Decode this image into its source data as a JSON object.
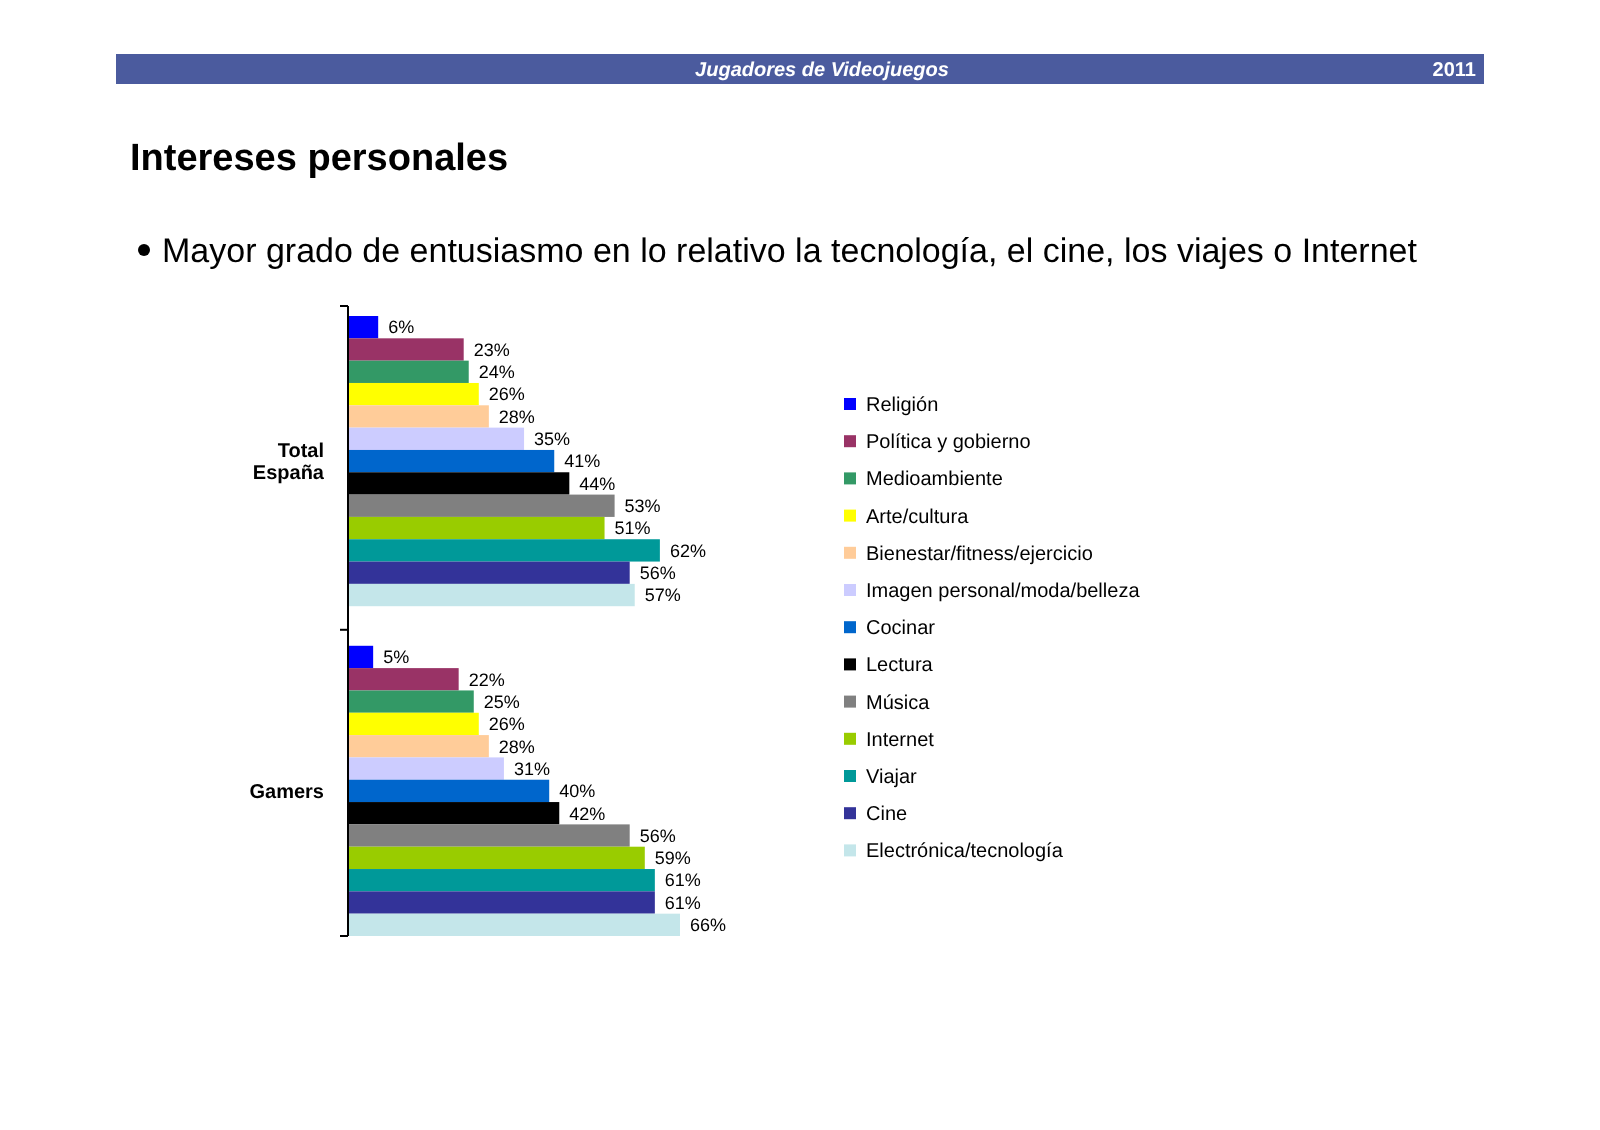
{
  "chart_data": {
    "type": "bar",
    "orientation": "horizontal",
    "title": "Intereses personales",
    "subtitle": "Mayor grado de entusiasmo en lo relativo la tecnología, el cine, los viajes o Internet",
    "annotations": [
      "Jugadores de Videojuegos",
      "2011"
    ],
    "categories": [
      "Total España",
      "Gamers"
    ],
    "legend": "right",
    "series": [
      {
        "name": "Religión",
        "color": "#0000ff",
        "values": [
          6,
          5
        ],
        "value_labels": [
          "6%",
          "5%"
        ]
      },
      {
        "name": "Política y gobierno",
        "color": "#993366",
        "values": [
          23,
          22
        ],
        "value_labels": [
          "23%",
          "22%"
        ]
      },
      {
        "name": "Medioambiente",
        "color": "#339966",
        "values": [
          24,
          25
        ],
        "value_labels": [
          "24%",
          "25%"
        ]
      },
      {
        "name": "Arte/cultura",
        "color": "#ffff00",
        "values": [
          26,
          26
        ],
        "value_labels": [
          "26%",
          "26%"
        ]
      },
      {
        "name": "Bienestar/fitness/ejercicio",
        "color": "#ffcc99",
        "values": [
          28,
          28
        ],
        "value_labels": [
          "28%",
          "28%"
        ]
      },
      {
        "name": "Imagen personal/moda/belleza",
        "color": "#ccccff",
        "values": [
          35,
          31
        ],
        "value_labels": [
          "35%",
          "31%"
        ]
      },
      {
        "name": "Cocinar",
        "color": "#0066cc",
        "values": [
          41,
          40
        ],
        "value_labels": [
          "41%",
          "40%"
        ]
      },
      {
        "name": "Lectura",
        "color": "#000000",
        "values": [
          44,
          42
        ],
        "value_labels": [
          "44%",
          "42%"
        ]
      },
      {
        "name": "Música",
        "color": "#808080",
        "values": [
          53,
          56
        ],
        "value_labels": [
          "53%",
          "56%"
        ]
      },
      {
        "name": "Internet",
        "color": "#99cc00",
        "values": [
          51,
          59
        ],
        "value_labels": [
          "51%",
          "59%"
        ]
      },
      {
        "name": "Viajar",
        "color": "#009999",
        "values": [
          62,
          61
        ],
        "value_labels": [
          "62%",
          "61%"
        ]
      },
      {
        "name": "Cine",
        "color": "#333399",
        "values": [
          56,
          61
        ],
        "value_labels": [
          "56%",
          "61%"
        ]
      },
      {
        "name": "Electrónica/tecnología",
        "color": "#c4e6ea",
        "values": [
          57,
          66
        ],
        "value_labels": [
          "57%",
          "66%"
        ]
      }
    ]
  }
}
